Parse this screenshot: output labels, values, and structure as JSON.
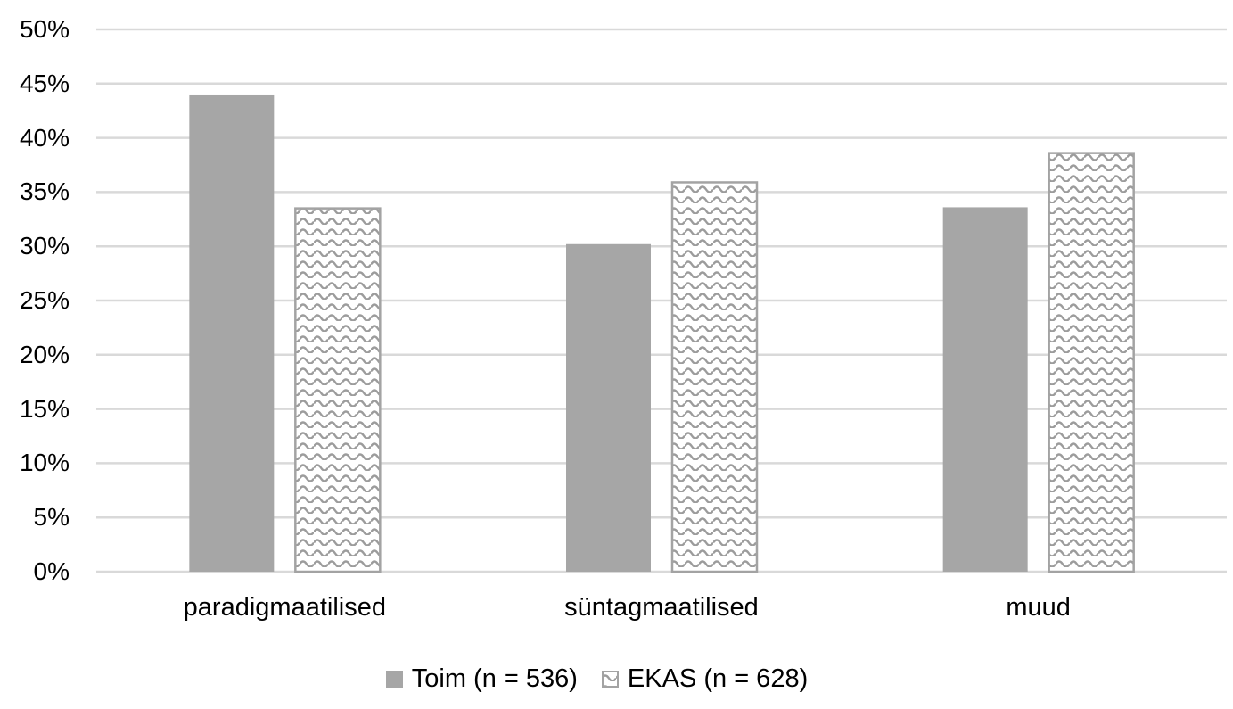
{
  "chart_data": {
    "type": "bar",
    "title": "",
    "xlabel": "",
    "ylabel": "",
    "categories": [
      "paradigmaatilised",
      "süntagmaatilised",
      "muud"
    ],
    "series": [
      {
        "name": "Toim (n = 536)",
        "values": [
          44.0,
          30.2,
          33.6
        ],
        "fill": "solid",
        "color": "#a6a6a6"
      },
      {
        "name": "EKAS (n = 628)",
        "values": [
          33.5,
          35.9,
          38.6
        ],
        "fill": "pattern",
        "color": "#9c9c9c"
      }
    ],
    "ylim": [
      0,
      50
    ],
    "ytick_step": 5,
    "ytick_labels": [
      "0%",
      "5%",
      "10%",
      "15%",
      "20%",
      "25%",
      "30%",
      "35%",
      "40%",
      "45%",
      "50%"
    ],
    "grid": true,
    "legend_position": "bottom",
    "colors": {
      "gridline": "#d9d9d9",
      "pattern_border": "#a3a3a3",
      "pattern_background": "#ffffff",
      "text": "#000000",
      "background": "#ffffff"
    }
  }
}
